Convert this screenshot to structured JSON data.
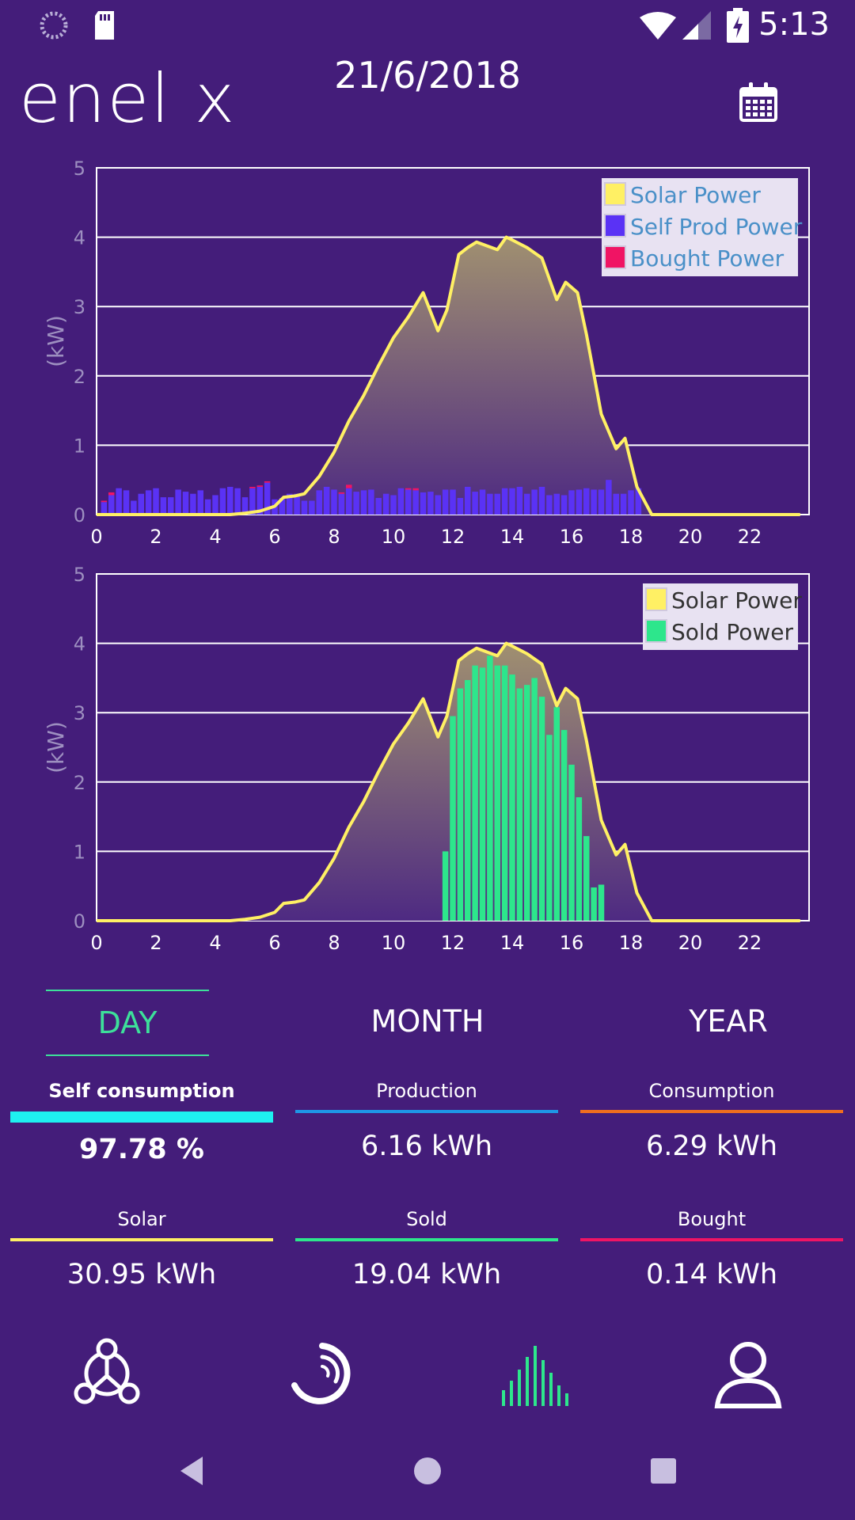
{
  "status_bar": {
    "time": "5:13",
    "icons": [
      "sync-icon",
      "sd-card-icon",
      "wifi-icon",
      "signal-icon",
      "battery-charging-icon"
    ]
  },
  "header": {
    "logo": "enel x",
    "date": "21/6/2018",
    "calendar_icon": "calendar-icon"
  },
  "colors": {
    "background": "#441d7a",
    "solar": "#fff064",
    "self_prod": "#5a32f5",
    "bought": "#f01464",
    "sold": "#2de68c",
    "self_consumption": "#1ef0f0",
    "production": "#1e96e6",
    "consumption": "#f06e1e",
    "active_tab": "#3de09a"
  },
  "chart_data": [
    {
      "type": "area",
      "ylabel": "(kW)",
      "ylim": [
        0,
        5
      ],
      "xlim": [
        0,
        24
      ],
      "x_ticks": [
        "0",
        "2",
        "4",
        "6",
        "8",
        "10",
        "12",
        "14",
        "16",
        "18",
        "20",
        "22"
      ],
      "y_ticks": [
        "0",
        "1",
        "2",
        "3",
        "4",
        "5"
      ],
      "grid": true,
      "legend_position": "top-right",
      "legend": [
        "Solar Power",
        "Self Prod Power",
        "Bought Power"
      ],
      "solar_power": {
        "x": [
          0,
          4.5,
          5,
          5.5,
          6,
          6.3,
          6.7,
          7,
          7.5,
          8,
          8.5,
          9,
          9.5,
          10,
          10.5,
          11,
          11.5,
          11.8,
          12.2,
          12.5,
          12.8,
          13.5,
          13.8,
          14,
          14.5,
          15,
          15.5,
          15.8,
          16.2,
          16.5,
          17,
          17.5,
          17.8,
          18.2,
          18.7,
          19,
          23.7
        ],
        "y": [
          0,
          0,
          0.02,
          0.05,
          0.12,
          0.25,
          0.27,
          0.3,
          0.55,
          0.9,
          1.35,
          1.72,
          2.15,
          2.55,
          2.85,
          3.2,
          2.65,
          2.95,
          3.75,
          3.85,
          3.93,
          3.82,
          4.0,
          3.96,
          3.85,
          3.7,
          3.1,
          3.35,
          3.2,
          2.6,
          1.45,
          0.95,
          1.1,
          0.4,
          0,
          0,
          0
        ]
      },
      "self_prod_power": {
        "x": [
          0.25,
          0.5,
          0.75,
          1,
          1.25,
          1.5,
          1.75,
          2,
          2.25,
          2.5,
          2.75,
          3,
          3.25,
          3.5,
          3.75,
          4,
          4.25,
          4.5,
          4.75,
          5,
          5.25,
          5.5,
          5.75,
          6,
          6.25,
          6.5,
          6.75,
          7,
          7.25,
          7.5,
          7.75,
          8,
          8.25,
          8.5,
          8.75,
          9,
          9.25,
          9.5,
          9.75,
          10,
          10.25,
          10.5,
          10.75,
          11,
          11.25,
          11.5,
          11.75,
          12,
          12.25,
          12.5,
          12.75,
          13,
          13.25,
          13.5,
          13.75,
          14,
          14.25,
          14.5,
          14.75,
          15,
          15.25,
          15.5,
          15.75,
          16,
          16.25,
          16.5,
          16.75,
          17,
          17.25,
          17.5,
          17.75,
          18,
          18.25
        ],
        "y": [
          0.18,
          0.28,
          0.38,
          0.35,
          0.2,
          0.3,
          0.35,
          0.38,
          0.25,
          0.25,
          0.36,
          0.33,
          0.3,
          0.35,
          0.22,
          0.28,
          0.38,
          0.4,
          0.38,
          0.25,
          0.38,
          0.4,
          0.46,
          0.22,
          0.24,
          0.3,
          0.3,
          0.2,
          0.2,
          0.35,
          0.4,
          0.36,
          0.3,
          0.38,
          0.33,
          0.35,
          0.36,
          0.24,
          0.3,
          0.28,
          0.38,
          0.36,
          0.35,
          0.32,
          0.33,
          0.28,
          0.36,
          0.36,
          0.24,
          0.4,
          0.33,
          0.36,
          0.3,
          0.3,
          0.38,
          0.38,
          0.4,
          0.3,
          0.36,
          0.4,
          0.28,
          0.3,
          0.28,
          0.35,
          0.36,
          0.38,
          0.36,
          0.36,
          0.5,
          0.3,
          0.3,
          0.35,
          0.38
        ],
        "bought": [
          0.02,
          0.04,
          0.0,
          0.0,
          0.0,
          0.0,
          0.0,
          0.0,
          0.0,
          0.0,
          0.0,
          0.0,
          0.0,
          0.0,
          0.0,
          0.0,
          0.0,
          0.0,
          0.0,
          0.0,
          0.02,
          0.02,
          0.02,
          0.0,
          0.0,
          0.0,
          0.0,
          0.0,
          0.0,
          0.0,
          0.0,
          0.0,
          0.02,
          0.05,
          0.0,
          0.0,
          0.0,
          0.0,
          0.0,
          0.0,
          0.0,
          0.02,
          0.03,
          0.0,
          0.0,
          0.0,
          0.0,
          0.0,
          0.0,
          0.0,
          0.0,
          0.0,
          0.0,
          0.0,
          0.0,
          0.0,
          0.0,
          0.0,
          0.0,
          0.0,
          0.0,
          0.0,
          0.0,
          0.0,
          0.0,
          0.0,
          0.0,
          0.0,
          0.0,
          0.0,
          0.0,
          0.0,
          0.0
        ]
      }
    },
    {
      "type": "area",
      "ylabel": "(kW)",
      "ylim": [
        0,
        5
      ],
      "xlim": [
        0,
        24
      ],
      "x_ticks": [
        "0",
        "2",
        "4",
        "6",
        "8",
        "10",
        "12",
        "14",
        "16",
        "18",
        "20",
        "22"
      ],
      "y_ticks": [
        "0",
        "1",
        "2",
        "3",
        "4",
        "5"
      ],
      "grid": true,
      "legend_position": "top-right",
      "legend": [
        "Solar Power",
        "Sold Power"
      ],
      "solar_power": {
        "x": [
          0,
          4.5,
          5,
          5.5,
          6,
          6.3,
          6.7,
          7,
          7.5,
          8,
          8.5,
          9,
          9.5,
          10,
          10.5,
          11,
          11.5,
          11.8,
          12.2,
          12.5,
          12.8,
          13.5,
          13.8,
          14,
          14.5,
          15,
          15.5,
          15.8,
          16.2,
          16.5,
          17,
          17.5,
          17.8,
          18.2,
          18.7,
          19,
          23.7
        ],
        "y": [
          0,
          0,
          0.02,
          0.05,
          0.12,
          0.25,
          0.27,
          0.3,
          0.55,
          0.9,
          1.35,
          1.72,
          2.15,
          2.55,
          2.85,
          3.2,
          2.65,
          2.95,
          3.75,
          3.85,
          3.93,
          3.82,
          4.0,
          3.96,
          3.85,
          3.7,
          3.1,
          3.35,
          3.2,
          2.6,
          1.45,
          0.95,
          1.1,
          0.4,
          0,
          0,
          0
        ]
      },
      "sold_power": {
        "x": [
          11.75,
          12.0,
          12.25,
          12.5,
          12.75,
          13.0,
          13.25,
          13.5,
          13.75,
          14.0,
          14.25,
          14.5,
          14.75,
          15.0,
          15.25,
          15.5,
          15.75,
          16.0,
          16.25,
          16.5,
          16.75,
          17.0,
          17.25,
          17.5,
          17.75,
          18.0,
          18.25
        ],
        "y": [
          1.0,
          2.95,
          3.35,
          3.47,
          3.68,
          3.65,
          3.82,
          3.68,
          3.68,
          3.55,
          3.35,
          3.4,
          3.5,
          3.23,
          2.68,
          3.08,
          2.75,
          2.25,
          1.78,
          1.22,
          0.48,
          0.52,
          0.0,
          0.0,
          0.0,
          0.0,
          0.0
        ]
      }
    }
  ],
  "tabs": [
    {
      "label": "DAY",
      "active": true
    },
    {
      "label": "MONTH",
      "active": false
    },
    {
      "label": "YEAR",
      "active": false
    }
  ],
  "stats": {
    "self_consumption": {
      "label": "Self consumption",
      "value": "97.78 %"
    },
    "production": {
      "label": "Production",
      "value": "6.16 kWh"
    },
    "consumption": {
      "label": "Consumption",
      "value": "6.29 kWh"
    },
    "solar": {
      "label": "Solar",
      "value": "30.95 kWh"
    },
    "sold": {
      "label": "Sold",
      "value": "19.04 kWh"
    },
    "bought": {
      "label": "Bought",
      "value": "0.14 kWh"
    }
  },
  "bottom_nav": [
    "network-icon",
    "gauge-icon",
    "chart-icon",
    "profile-icon"
  ],
  "system_nav": [
    "back-icon",
    "home-icon",
    "recents-icon"
  ]
}
